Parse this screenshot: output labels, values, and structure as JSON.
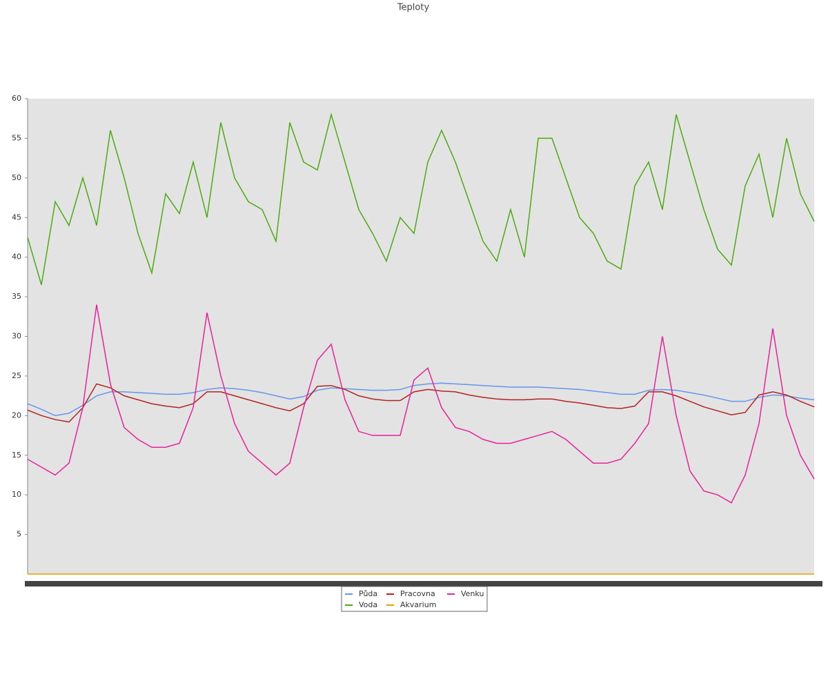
{
  "chart_data": {
    "type": "line",
    "title": "Teploty",
    "ylim": [
      0,
      60
    ],
    "yticks": [
      5,
      10,
      15,
      20,
      25,
      30,
      35,
      40,
      45,
      50,
      55,
      60
    ],
    "legend": "bottom",
    "series": [
      {
        "name": "Půda",
        "color": "#6495ed",
        "values": [
          21.5,
          20.8,
          20,
          20.3,
          21.3,
          22.5,
          23,
          23,
          22.9,
          22.8,
          22.7,
          22.7,
          22.9,
          23.3,
          23.5,
          23.4,
          23.2,
          22.9,
          22.5,
          22.1,
          22.4,
          23.2,
          23.5,
          23.4,
          23.3,
          23.2,
          23.2,
          23.3,
          23.8,
          24,
          24.1,
          24,
          23.9,
          23.8,
          23.7,
          23.6,
          23.6,
          23.6,
          23.5,
          23.4,
          23.3,
          23.1,
          22.9,
          22.7,
          22.7,
          23.2,
          23.3,
          23.2,
          22.9,
          22.6,
          22.2,
          21.8,
          21.8,
          22.3,
          22.6,
          22.5,
          22.2,
          22
        ]
      },
      {
        "name": "Voda",
        "color": "#4aaa10",
        "values": [
          42.5,
          36.5,
          47,
          44,
          50,
          44,
          56,
          50,
          43,
          38,
          48,
          45.5,
          52,
          45,
          57,
          50,
          47,
          46,
          42,
          57,
          52,
          51,
          58,
          52,
          46,
          43,
          39.5,
          45,
          43,
          52,
          56,
          52,
          47,
          42,
          39.5,
          46,
          40,
          55,
          55,
          50,
          45,
          43,
          39.5,
          38.5,
          49,
          52,
          46,
          58,
          52,
          46,
          41,
          39,
          49,
          53,
          45,
          55,
          48,
          44.5
        ]
      },
      {
        "name": "Pracovna",
        "color": "#b22222",
        "values": [
          20.7,
          20,
          19.5,
          19.2,
          21,
          24,
          23.5,
          22.5,
          22,
          21.5,
          21.2,
          21,
          21.5,
          23,
          23,
          22.5,
          22,
          21.5,
          21,
          20.6,
          21.5,
          23.7,
          23.8,
          23.3,
          22.5,
          22.1,
          21.9,
          21.9,
          23,
          23.3,
          23.1,
          23,
          22.6,
          22.3,
          22.1,
          22,
          22,
          22.1,
          22.1,
          21.8,
          21.6,
          21.3,
          21,
          20.9,
          21.2,
          23,
          23,
          22.5,
          21.8,
          21.1,
          20.6,
          20.1,
          20.4,
          22.6,
          23,
          22.6,
          21.8,
          21.1
        ]
      },
      {
        "name": "Akvarium",
        "color": "#e8a000",
        "values": [
          0,
          0,
          0,
          0,
          0,
          0,
          0,
          0,
          0,
          0,
          0,
          0,
          0,
          0,
          0,
          0,
          0,
          0,
          0,
          0,
          0,
          0,
          0,
          0,
          0,
          0,
          0,
          0,
          0,
          0,
          0,
          0,
          0,
          0,
          0,
          0,
          0,
          0,
          0,
          0,
          0,
          0,
          0,
          0,
          0,
          0,
          0,
          0,
          0,
          0,
          0,
          0,
          0,
          0,
          0,
          0,
          0,
          0
        ]
      },
      {
        "name": "Venku",
        "color": "#e8219a",
        "values": [
          14.5,
          13.5,
          12.5,
          14,
          21,
          34,
          24,
          18.5,
          17,
          16,
          16,
          16.5,
          21,
          33,
          25,
          19,
          15.5,
          14,
          12.5,
          14,
          21,
          27,
          29,
          22,
          18,
          17.5,
          17.5,
          17.5,
          24.5,
          26,
          21,
          18.5,
          18,
          17,
          16.5,
          16.5,
          17,
          17.5,
          18,
          17,
          15.5,
          14,
          14,
          14.5,
          16.5,
          19,
          30,
          20,
          13,
          10.5,
          10,
          9,
          12.5,
          19,
          31,
          20,
          15,
          12
        ]
      }
    ]
  }
}
